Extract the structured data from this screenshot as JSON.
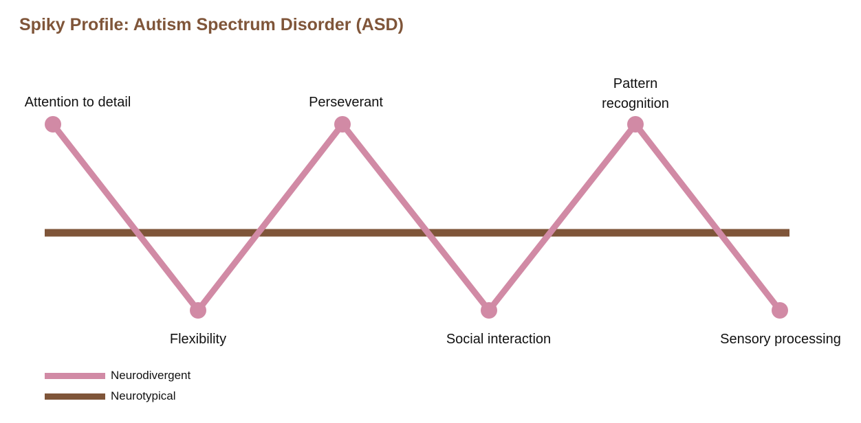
{
  "chart_data": {
    "type": "line",
    "title": "Spiky Profile: Autism Spectrum Disorder (ASD)",
    "categories": [
      "Attention to detail",
      "Flexibility",
      "Perseverant",
      "Social interaction",
      "Pattern recognition",
      "Sensory processing"
    ],
    "series": [
      {
        "name": "Neurodivergent",
        "values": [
          1,
          -1,
          1,
          -1,
          1,
          -1
        ],
        "color": "#d18aa5",
        "markers": true
      },
      {
        "name": "Neurotypical",
        "values": [
          0,
          0,
          0,
          0,
          0,
          0
        ],
        "color": "#7f5539",
        "markers": false
      }
    ],
    "value_scale": "relative: 1 = above neurotypical, 0 = neurotypical, -1 = below neurotypical",
    "axes_shown": false,
    "grid": false,
    "legend_position": "bottom-left"
  },
  "colors": {
    "title": "#7f5539"
  }
}
